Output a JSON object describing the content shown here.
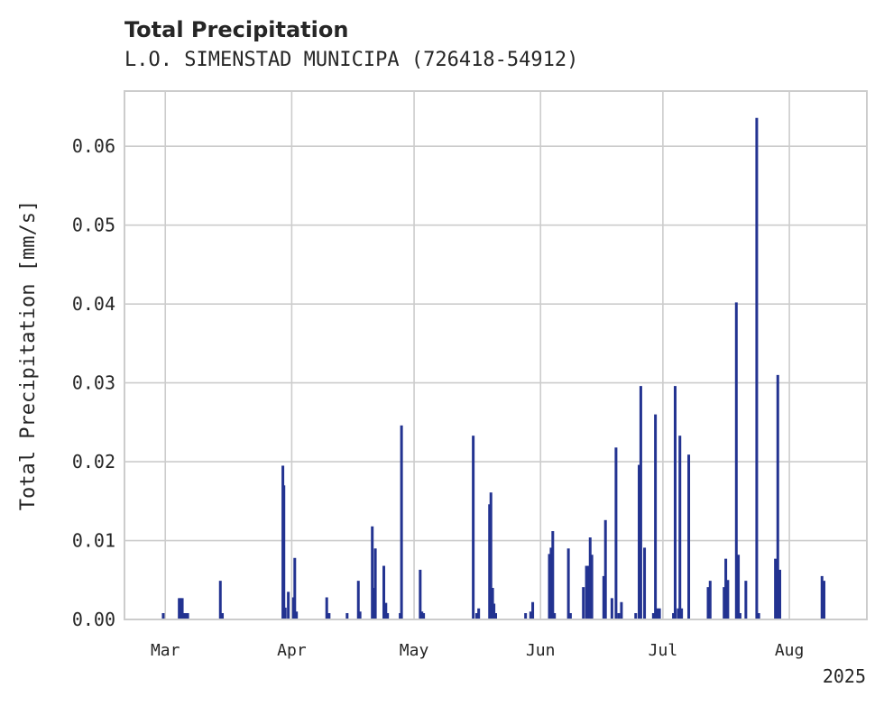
{
  "chart_data": {
    "type": "bar",
    "title": "Total Precipitation",
    "subtitle": "L.O. SIMENSTAD MUNICIPA (726418-54912)",
    "ylabel": "Total Precipitation [mm/s]",
    "xlabel": "",
    "x_offset_label": "2025",
    "ylim": [
      0,
      0.067
    ],
    "xlim": [
      "2025-02-19",
      "2025-08-20"
    ],
    "grid": true,
    "legend": "none",
    "color": "#233391",
    "y_ticks": [
      {
        "value": 0.0,
        "label": "0.00"
      },
      {
        "value": 0.01,
        "label": "0.01"
      },
      {
        "value": 0.02,
        "label": "0.02"
      },
      {
        "value": 0.03,
        "label": "0.03"
      },
      {
        "value": 0.04,
        "label": "0.04"
      },
      {
        "value": 0.05,
        "label": "0.05"
      },
      {
        "value": 0.06,
        "label": "0.06"
      }
    ],
    "x_ticks": [
      {
        "date": "2025-03-01",
        "label": "Mar"
      },
      {
        "date": "2025-04-01",
        "label": "Apr"
      },
      {
        "date": "2025-05-01",
        "label": "May"
      },
      {
        "date": "2025-06-01",
        "label": "Jun"
      },
      {
        "date": "2025-07-01",
        "label": "Jul"
      },
      {
        "date": "2025-08-01",
        "label": "Aug"
      }
    ],
    "series": [
      {
        "points": [
          [
            "2025-02-28T12:00",
            0.0008
          ],
          [
            "2025-03-04T10:00",
            0.0027
          ],
          [
            "2025-03-04T18:00",
            0.0027
          ],
          [
            "2025-03-05T04:00",
            0.0027
          ],
          [
            "2025-03-05T12:00",
            0.0008
          ],
          [
            "2025-03-06T00:00",
            0.0008
          ],
          [
            "2025-03-06T12:00",
            0.0008
          ],
          [
            "2025-03-14T12:00",
            0.0049
          ],
          [
            "2025-03-15T00:00",
            0.0008
          ],
          [
            "2025-03-29T20:00",
            0.0195
          ],
          [
            "2025-03-30T02:00",
            0.017
          ],
          [
            "2025-03-30T10:00",
            0.0015
          ],
          [
            "2025-03-31T04:00",
            0.0035
          ],
          [
            "2025-04-01T10:00",
            0.0028
          ],
          [
            "2025-04-01T18:00",
            0.0078
          ],
          [
            "2025-04-02T04:00",
            0.001
          ],
          [
            "2025-04-09T14:00",
            0.0028
          ],
          [
            "2025-04-10T04:00",
            0.0008
          ],
          [
            "2025-04-14T14:00",
            0.0008
          ],
          [
            "2025-04-17T08:00",
            0.0049
          ],
          [
            "2025-04-17T18:00",
            0.001
          ],
          [
            "2025-04-20T18:00",
            0.0118
          ],
          [
            "2025-04-21T04:00",
            0.004
          ],
          [
            "2025-04-21T12:00",
            0.009
          ],
          [
            "2025-04-23T14:00",
            0.0068
          ],
          [
            "2025-04-24T02:00",
            0.0021
          ],
          [
            "2025-04-24T12:00",
            0.0008
          ],
          [
            "2025-04-27T14:00",
            0.0008
          ],
          [
            "2025-04-27T22:00",
            0.0246
          ],
          [
            "2025-05-02T12:00",
            0.0063
          ],
          [
            "2025-05-02T22:00",
            0.001
          ],
          [
            "2025-05-03T08:00",
            0.0008
          ],
          [
            "2025-05-15T12:00",
            0.0233
          ],
          [
            "2025-05-16T08:00",
            0.0008
          ],
          [
            "2025-05-16T20:00",
            0.0014
          ],
          [
            "2025-05-19T12:00",
            0.0146
          ],
          [
            "2025-05-19T20:00",
            0.0161
          ],
          [
            "2025-05-20T06:00",
            0.004
          ],
          [
            "2025-05-20T14:00",
            0.002
          ],
          [
            "2025-05-21T00:00",
            0.0008
          ],
          [
            "2025-05-28T08:00",
            0.0008
          ],
          [
            "2025-05-29T14:00",
            0.001
          ],
          [
            "2025-05-30T02:00",
            0.0022
          ],
          [
            "2025-06-03T04:00",
            0.0083
          ],
          [
            "2025-06-03T14:00",
            0.0091
          ],
          [
            "2025-06-04T00:00",
            0.0112
          ],
          [
            "2025-06-04T10:00",
            0.0008
          ],
          [
            "2025-06-07T20:00",
            0.009
          ],
          [
            "2025-06-08T08:00",
            0.0008
          ],
          [
            "2025-06-11T12:00",
            0.0041
          ],
          [
            "2025-06-12T06:00",
            0.0068
          ],
          [
            "2025-06-12T18:00",
            0.0068
          ],
          [
            "2025-06-13T04:00",
            0.0104
          ],
          [
            "2025-06-13T14:00",
            0.0082
          ],
          [
            "2025-06-16T12:00",
            0.0055
          ],
          [
            "2025-06-16T22:00",
            0.0126
          ],
          [
            "2025-06-18T12:00",
            0.0027
          ],
          [
            "2025-06-19T12:00",
            0.0218
          ],
          [
            "2025-06-20T04:00",
            0.0008
          ],
          [
            "2025-06-20T20:00",
            0.0022
          ],
          [
            "2025-06-24T08:00",
            0.0008
          ],
          [
            "2025-06-25T04:00",
            0.0196
          ],
          [
            "2025-06-25T14:00",
            0.0296
          ],
          [
            "2025-06-26T12:00",
            0.0091
          ],
          [
            "2025-06-28T16:00",
            0.0008
          ],
          [
            "2025-06-29T04:00",
            0.026
          ],
          [
            "2025-06-29T16:00",
            0.0014
          ],
          [
            "2025-06-30T04:00",
            0.0014
          ],
          [
            "2025-07-03T14:00",
            0.0008
          ],
          [
            "2025-07-04T00:00",
            0.0296
          ],
          [
            "2025-07-04T18:00",
            0.0014
          ],
          [
            "2025-07-05T04:00",
            0.0233
          ],
          [
            "2025-07-05T14:00",
            0.0014
          ],
          [
            "2025-07-07T08:00",
            0.0209
          ],
          [
            "2025-07-12T02:00",
            0.0041
          ],
          [
            "2025-07-12T14:00",
            0.0049
          ],
          [
            "2025-07-16T00:00",
            0.0041
          ],
          [
            "2025-07-16T10:00",
            0.0077
          ],
          [
            "2025-07-16T22:00",
            0.005
          ],
          [
            "2025-07-19T00:00",
            0.0402
          ],
          [
            "2025-07-19T12:00",
            0.0082
          ],
          [
            "2025-07-19T22:00",
            0.0008
          ],
          [
            "2025-07-21T08:00",
            0.0049
          ],
          [
            "2025-07-24T00:00",
            0.0636
          ],
          [
            "2025-07-24T12:00",
            0.0008
          ],
          [
            "2025-07-28T14:00",
            0.0077
          ],
          [
            "2025-07-29T04:00",
            0.031
          ],
          [
            "2025-07-29T16:00",
            0.0063
          ],
          [
            "2025-08-09T00:00",
            0.0055
          ],
          [
            "2025-08-09T12:00",
            0.0049
          ]
        ]
      }
    ]
  }
}
